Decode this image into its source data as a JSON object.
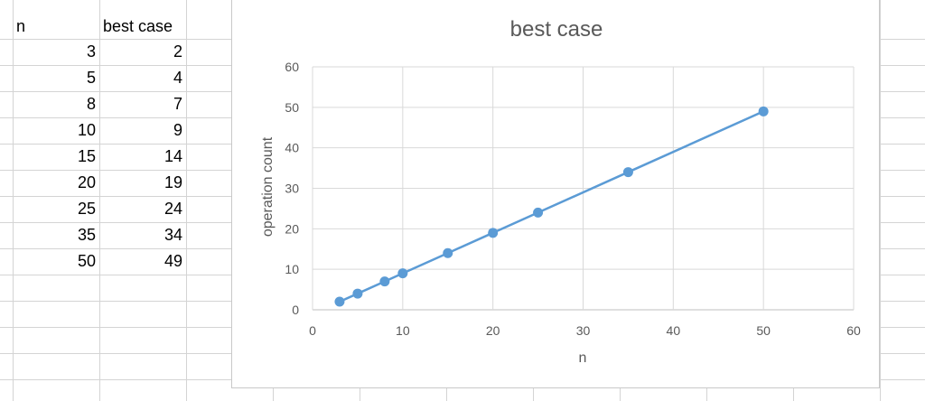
{
  "sheet": {
    "headers": [
      "n",
      "best case"
    ],
    "rows": [
      [
        "3",
        "2"
      ],
      [
        "5",
        "4"
      ],
      [
        "8",
        "7"
      ],
      [
        "10",
        "9"
      ],
      [
        "15",
        "14"
      ],
      [
        "20",
        "19"
      ],
      [
        "25",
        "24"
      ],
      [
        "35",
        "34"
      ],
      [
        "50",
        "49"
      ]
    ]
  },
  "chart_data": {
    "type": "scatter",
    "title": "best case",
    "xlabel": "n",
    "ylabel": "operation count",
    "xlim": [
      0,
      60
    ],
    "ylim": [
      0,
      60
    ],
    "xticks": [
      "0",
      "10",
      "20",
      "30",
      "40",
      "50",
      "60"
    ],
    "yticks": [
      "0",
      "10",
      "20",
      "30",
      "40",
      "50",
      "60"
    ],
    "grid": true,
    "series": [
      {
        "color": "#5b9bd5",
        "points": [
          [
            3,
            2
          ],
          [
            5,
            4
          ],
          [
            8,
            7
          ],
          [
            10,
            9
          ],
          [
            15,
            14
          ],
          [
            20,
            19
          ],
          [
            25,
            24
          ],
          [
            35,
            34
          ],
          [
            50,
            49
          ]
        ]
      }
    ]
  }
}
